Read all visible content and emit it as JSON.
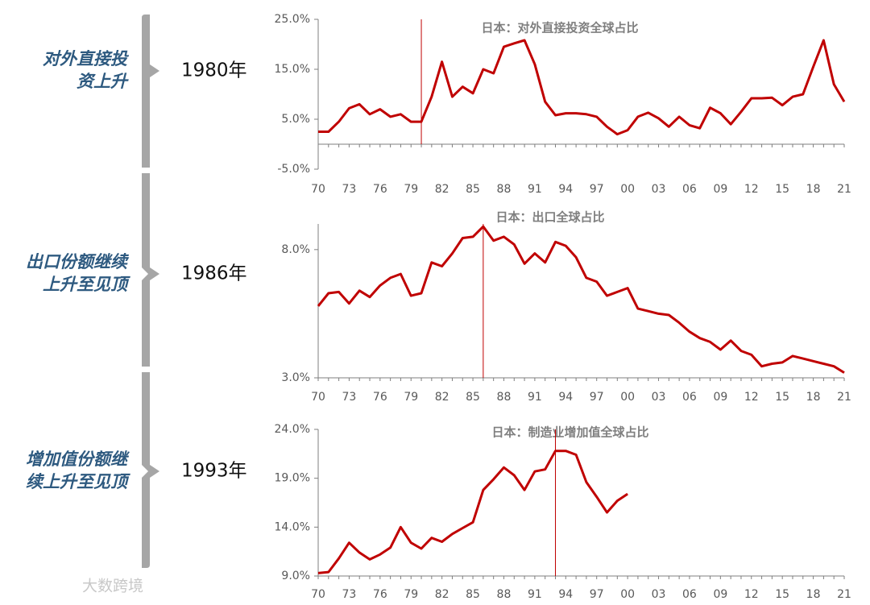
{
  "rows": [
    {
      "heading": [
        "对外直接投",
        "资上升"
      ],
      "year": "1980年"
    },
    {
      "heading": [
        "出口份额继续",
        "上升至见顶"
      ],
      "year": "1986年"
    },
    {
      "heading": [
        "增加值份额继",
        "续上升至见顶"
      ],
      "year": "1993年"
    }
  ],
  "watermark": "大数跨境",
  "chart_data": [
    {
      "type": "line",
      "title": "日本：对外直接投资全球占比",
      "color": "#c00000",
      "highlight_index": 10,
      "categories": [
        "70",
        null,
        null,
        "73",
        null,
        null,
        "76",
        null,
        null,
        "79",
        null,
        null,
        "82",
        null,
        null,
        "85",
        null,
        null,
        "88",
        null,
        null,
        "91",
        null,
        null,
        "94",
        null,
        null,
        "97",
        null,
        null,
        "00",
        null,
        null,
        "03",
        null,
        null,
        "06",
        null,
        null,
        "09",
        null,
        null,
        "12",
        null,
        null,
        "15",
        null,
        null,
        "18",
        null,
        null,
        "21"
      ],
      "values": [
        2.5,
        2.5,
        4.5,
        7.2,
        8,
        6,
        7,
        5.5,
        6,
        4.5,
        4.5,
        9.5,
        16.5,
        9.5,
        11.5,
        10.2,
        15,
        14.2,
        19.5,
        20.2,
        20.8,
        16,
        8.5,
        5.8,
        6.2,
        6.2,
        6,
        5.5,
        3.5,
        2,
        2.8,
        5.5,
        6.3,
        5.2,
        3.5,
        5.5,
        3.8,
        3.2,
        7.3,
        6.2,
        4,
        6.5,
        9.2,
        9.2,
        9.3,
        7.8,
        9.5,
        10,
        15.5,
        20.8,
        12,
        8.5
      ],
      "ylim": [
        -5,
        25
      ],
      "yticks": [
        {
          "value": -5,
          "label": "-5.0%"
        },
        {
          "value": 5,
          "label": "5.0%"
        },
        {
          "value": 15,
          "label": "15.0%"
        },
        {
          "value": 25,
          "label": "25.0%"
        }
      ]
    },
    {
      "type": "line",
      "title": "日本：出口全球占比",
      "color": "#c00000",
      "highlight_index": 16,
      "categories": [
        "70",
        null,
        null,
        "73",
        null,
        null,
        "76",
        null,
        null,
        "79",
        null,
        null,
        "82",
        null,
        null,
        "85",
        null,
        null,
        "88",
        null,
        null,
        "91",
        null,
        null,
        "94",
        null,
        null,
        "97",
        null,
        null,
        "00",
        null,
        null,
        "03",
        null,
        null,
        "06",
        null,
        null,
        "09",
        null,
        null,
        "12",
        null,
        null,
        "15",
        null,
        null,
        "18",
        null,
        null,
        "21"
      ],
      "values": [
        5.8,
        6.3,
        6.35,
        5.9,
        6.4,
        6.15,
        6.6,
        6.9,
        7.05,
        6.2,
        6.3,
        7.5,
        7.35,
        7.85,
        8.45,
        8.5,
        8.9,
        8.35,
        8.5,
        8.2,
        7.45,
        7.85,
        7.5,
        8.3,
        8.15,
        7.7,
        6.9,
        6.75,
        6.2,
        6.35,
        6.5,
        5.7,
        5.6,
        5.5,
        5.45,
        5.15,
        4.8,
        4.55,
        4.4,
        4.1,
        4.45,
        4.05,
        3.9,
        3.45,
        3.55,
        3.6,
        3.85,
        3.75,
        3.65,
        3.55,
        3.45,
        3.2
      ],
      "ylim": [
        3,
        9
      ],
      "yticks": [
        {
          "value": 3,
          "label": "3.0%"
        },
        {
          "value": 8,
          "label": "8.0%"
        }
      ]
    },
    {
      "type": "line",
      "title": "日本：制造业增加值全球占比",
      "color": "#c00000",
      "highlight_index": 23,
      "categories": [
        "70",
        null,
        null,
        "73",
        null,
        null,
        "76",
        null,
        null,
        "79",
        null,
        null,
        "82",
        null,
        null,
        "85",
        null,
        null,
        "88",
        null,
        null,
        "91",
        null,
        null,
        "94",
        null,
        null,
        "97",
        null,
        null,
        "00",
        null,
        null,
        "03",
        null,
        null,
        "06",
        null,
        null,
        "09",
        null,
        null,
        "12",
        null,
        null,
        "15",
        null,
        null,
        "18",
        null,
        null,
        "21"
      ],
      "values": [
        9.3,
        9.4,
        10.8,
        12.4,
        11.4,
        10.7,
        11.2,
        11.9,
        14,
        12.4,
        11.8,
        12.9,
        12.5,
        13.3,
        13.9,
        14.5,
        17.8,
        18.9,
        20.1,
        19.3,
        17.8,
        19.7,
        19.9,
        21.8,
        21.8,
        21.4,
        18.6,
        17.1,
        15.5,
        16.7,
        17.4,
        null,
        null,
        null,
        null,
        null,
        null,
        null,
        null,
        null,
        null,
        null,
        null,
        null,
        null,
        null,
        null,
        null,
        null,
        null,
        null,
        null
      ],
      "ylim": [
        9,
        24
      ],
      "yticks": [
        {
          "value": 9,
          "label": "9.0%"
        },
        {
          "value": 14,
          "label": "14.0%"
        },
        {
          "value": 19,
          "label": "19.0%"
        },
        {
          "value": 24,
          "label": "24.0%"
        }
      ]
    }
  ]
}
